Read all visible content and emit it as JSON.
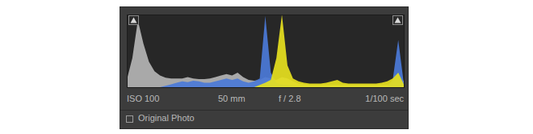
{
  "chart_data": {
    "type": "area",
    "x": [
      0,
      2,
      4,
      6,
      8,
      10,
      12,
      14,
      16,
      18,
      20,
      22,
      24,
      26,
      28,
      30,
      32,
      34,
      36,
      38,
      40,
      42,
      44,
      46,
      48,
      50,
      52,
      54,
      56,
      58,
      60,
      62,
      64,
      66,
      68,
      70,
      72,
      74,
      76,
      78,
      80,
      82,
      84,
      86,
      88,
      90,
      92,
      94,
      96,
      98,
      100
    ],
    "series": [
      {
        "color": "#a9a9a9",
        "values": [
          10,
          40,
          92,
          60,
          35,
          22,
          16,
          13,
          12,
          12,
          12,
          14,
          12,
          11,
          11,
          12,
          14,
          16,
          18,
          16,
          20,
          14,
          10,
          9,
          10,
          14,
          12,
          10,
          14,
          12,
          8,
          5,
          4,
          3,
          3,
          3,
          3,
          3,
          3,
          3,
          3,
          3,
          3,
          3,
          3,
          3,
          3,
          3,
          3,
          20,
          8
        ]
      },
      {
        "color": "#4b7ad8",
        "values": [
          0,
          0,
          0,
          0,
          0,
          0,
          0,
          2,
          4,
          6,
          8,
          7,
          9,
          8,
          6,
          6,
          8,
          10,
          12,
          10,
          12,
          8,
          6,
          8,
          12,
          98,
          20,
          6,
          4,
          3,
          2,
          1,
          1,
          1,
          1,
          1,
          1,
          1,
          1,
          1,
          1,
          1,
          1,
          1,
          1,
          1,
          1,
          1,
          10,
          65,
          5
        ]
      },
      {
        "color": "#e6df1e",
        "values": [
          0,
          0,
          0,
          0,
          0,
          0,
          0,
          0,
          0,
          0,
          0,
          0,
          0,
          0,
          0,
          0,
          0,
          0,
          0,
          0,
          0,
          0,
          0,
          0,
          3,
          6,
          10,
          40,
          100,
          30,
          12,
          8,
          6,
          5,
          5,
          5,
          6,
          8,
          10,
          6,
          5,
          5,
          5,
          5,
          5,
          5,
          6,
          8,
          12,
          20,
          4
        ]
      }
    ],
    "xlim": [
      0,
      100
    ],
    "ylim": [
      0,
      100
    ],
    "tick_labels": false
  },
  "info": [
    "ISO 100",
    "50 mm",
    "f / 2.8",
    "1/100 sec"
  ],
  "checkbox_label": "Original Photo"
}
